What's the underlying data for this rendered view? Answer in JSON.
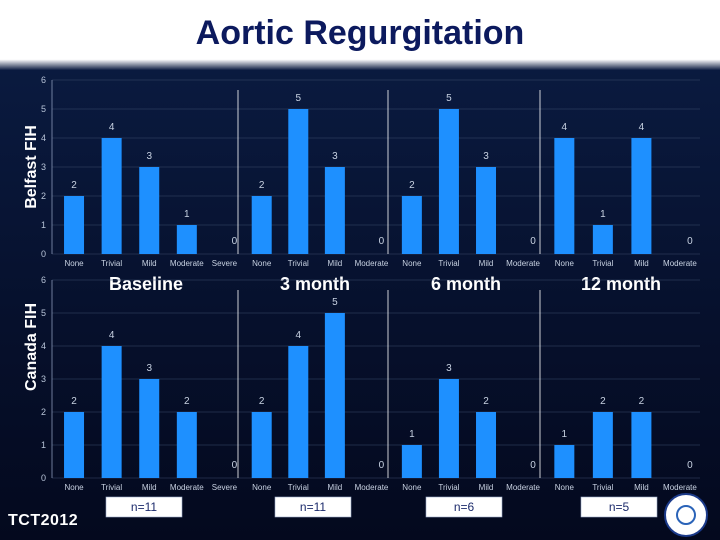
{
  "title": "Aortic Regurgitation",
  "logo_text": "TCT2012",
  "colors": {
    "bar": "#1e90ff",
    "background": "#06102c",
    "title": "#0c1a5e"
  },
  "chart_data": [
    {
      "type": "bar",
      "ylabel": "Belfast FIH",
      "ylim": [
        0,
        6
      ],
      "yticks": [
        "0",
        "1",
        "2",
        "3",
        "4",
        "5",
        "6"
      ],
      "groups": [
        {
          "name": "Baseline",
          "categories": [
            "None",
            "Trivial",
            "Mild",
            "Moderate",
            "Severe"
          ],
          "values": [
            2,
            4,
            3,
            1,
            0
          ]
        },
        {
          "name": "3 month",
          "categories": [
            "None",
            "Trivial",
            "Mild",
            "Moderate"
          ],
          "values": [
            2,
            5,
            3,
            0
          ]
        },
        {
          "name": "6 month",
          "categories": [
            "None",
            "Trivial",
            "Mild",
            "Moderate"
          ],
          "values": [
            2,
            5,
            3,
            0
          ]
        },
        {
          "name": "12 month",
          "categories": [
            "None",
            "Trivial",
            "Mild",
            "Moderate"
          ],
          "values": [
            4,
            1,
            4,
            0
          ]
        }
      ]
    },
    {
      "type": "bar",
      "ylabel": "Canada FIH",
      "ylim": [
        0,
        6
      ],
      "yticks": [
        "0",
        "1",
        "2",
        "3",
        "4",
        "5",
        "6"
      ],
      "groups": [
        {
          "n": "n=11",
          "categories": [
            "None",
            "Trivial",
            "Mild",
            "Moderate",
            "Severe"
          ],
          "values": [
            2,
            4,
            3,
            2,
            0
          ]
        },
        {
          "n": "n=11",
          "categories": [
            "None",
            "Trivial",
            "Mild",
            "Moderate"
          ],
          "values": [
            2,
            4,
            5,
            0
          ]
        },
        {
          "n": "n=6",
          "categories": [
            "None",
            "Trivial",
            "Mild",
            "Moderate"
          ],
          "values": [
            1,
            3,
            2,
            0
          ]
        },
        {
          "n": "n=5",
          "categories": [
            "None",
            "Trivial",
            "Mild",
            "Moderate"
          ],
          "values": [
            1,
            2,
            2,
            0
          ]
        }
      ]
    }
  ]
}
